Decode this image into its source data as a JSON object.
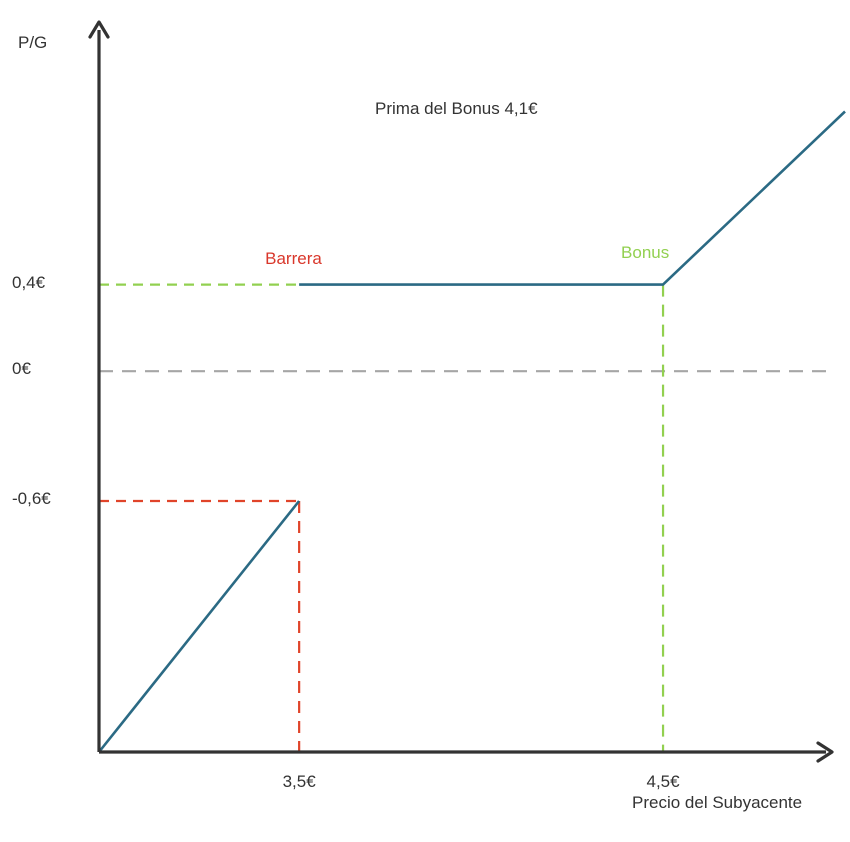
{
  "chart_data": {
    "type": "line",
    "ylabel": "P/G",
    "xlabel": "Precio del Subyacente",
    "annotation": "Prima del Bonus 4,1€",
    "x_ticks": [
      {
        "value": 3.5,
        "label": "3,5€"
      },
      {
        "value": 4.5,
        "label": "4,5€"
      }
    ],
    "y_ticks": [
      {
        "value": 0.4,
        "label": "0,4€"
      },
      {
        "value": 0,
        "label": "0€"
      },
      {
        "value": -0.6,
        "label": "-0,6€"
      }
    ],
    "xlim": [
      2.95,
      5.0
    ],
    "ylim": [
      -1.76,
      1.6
    ],
    "series": [
      {
        "segments": [
          [
            [
              2.95,
              -1.76
            ],
            [
              3.5,
              -0.6
            ]
          ],
          [
            [
              3.5,
              0.4
            ],
            [
              4.5,
              0.4
            ],
            [
              5.0,
              1.2
            ]
          ]
        ]
      }
    ],
    "markers": [
      {
        "label": "Barrera",
        "x": 3.5,
        "color": "#d9372b"
      },
      {
        "label": "Bonus",
        "x": 4.5,
        "color": "#92d050"
      }
    ],
    "colors": {
      "payoff": "#2b6a84",
      "axis": "#333333",
      "zero_line": "#a6a6a6",
      "barrier": "#e0442a",
      "bonus": "#92d050"
    }
  }
}
